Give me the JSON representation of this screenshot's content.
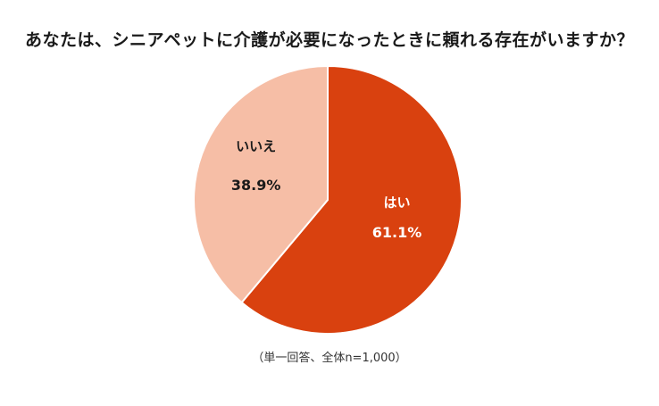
{
  "chart_data": {
    "type": "pie",
    "title": "あなたは、シニアペットに介護が必要になったときに頼れる存在がいますか？",
    "note": "（単一回答、全体n=1,000）",
    "slices": [
      {
        "label": "はい",
        "value": 61.1,
        "value_label": "61.1%",
        "color": "#d9410f",
        "text_color": "#ffffff"
      },
      {
        "label": "いいえ",
        "value": 38.9,
        "value_label": "38.9%",
        "color": "#f6bea6",
        "text_color": "#1a1a1a"
      }
    ]
  }
}
